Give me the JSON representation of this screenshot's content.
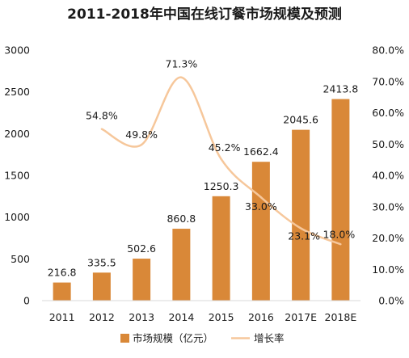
{
  "chart_data": {
    "type": "bar",
    "title": "2011-2018年中国在线订餐市场规模及预测",
    "categories": [
      "2011",
      "2012",
      "2013",
      "2014",
      "2015",
      "2016",
      "2017E",
      "2018E"
    ],
    "series": [
      {
        "name": "市场规模（亿元）",
        "type": "bar",
        "axis": "left",
        "values": [
          216.8,
          335.5,
          502.6,
          860.8,
          1250.3,
          1662.4,
          2045.6,
          2413.8
        ],
        "labels": [
          "216.8",
          "335.5",
          "502.6",
          "860.8",
          "1250.3",
          "1662.4",
          "2045.6",
          "2413.8"
        ]
      },
      {
        "name": "增长率",
        "type": "line",
        "axis": "right",
        "smooth": true,
        "values": [
          null,
          54.8,
          49.8,
          71.3,
          45.2,
          33.0,
          23.1,
          18.0
        ],
        "labels": [
          "",
          "54.8%",
          "49.8%",
          "71.3%",
          "45.2%",
          "33.0%",
          "23.1%",
          "18.0%"
        ]
      }
    ],
    "y_left": {
      "min": 0,
      "max": 3000,
      "ticks": [
        "0",
        "500",
        "1000",
        "1500",
        "2000",
        "2500",
        "3000"
      ]
    },
    "y_right": {
      "min": 0,
      "max": 80,
      "ticks": [
        "0.0%",
        "10.0%",
        "20.0%",
        "30.0%",
        "40.0%",
        "50.0%",
        "60.0%",
        "70.0%",
        "80.0%"
      ]
    },
    "grid": false,
    "legend_position": "bottom",
    "colors": {
      "bar": "#D98838",
      "line": "#F6C79B",
      "text": "#1a1a1a"
    }
  }
}
